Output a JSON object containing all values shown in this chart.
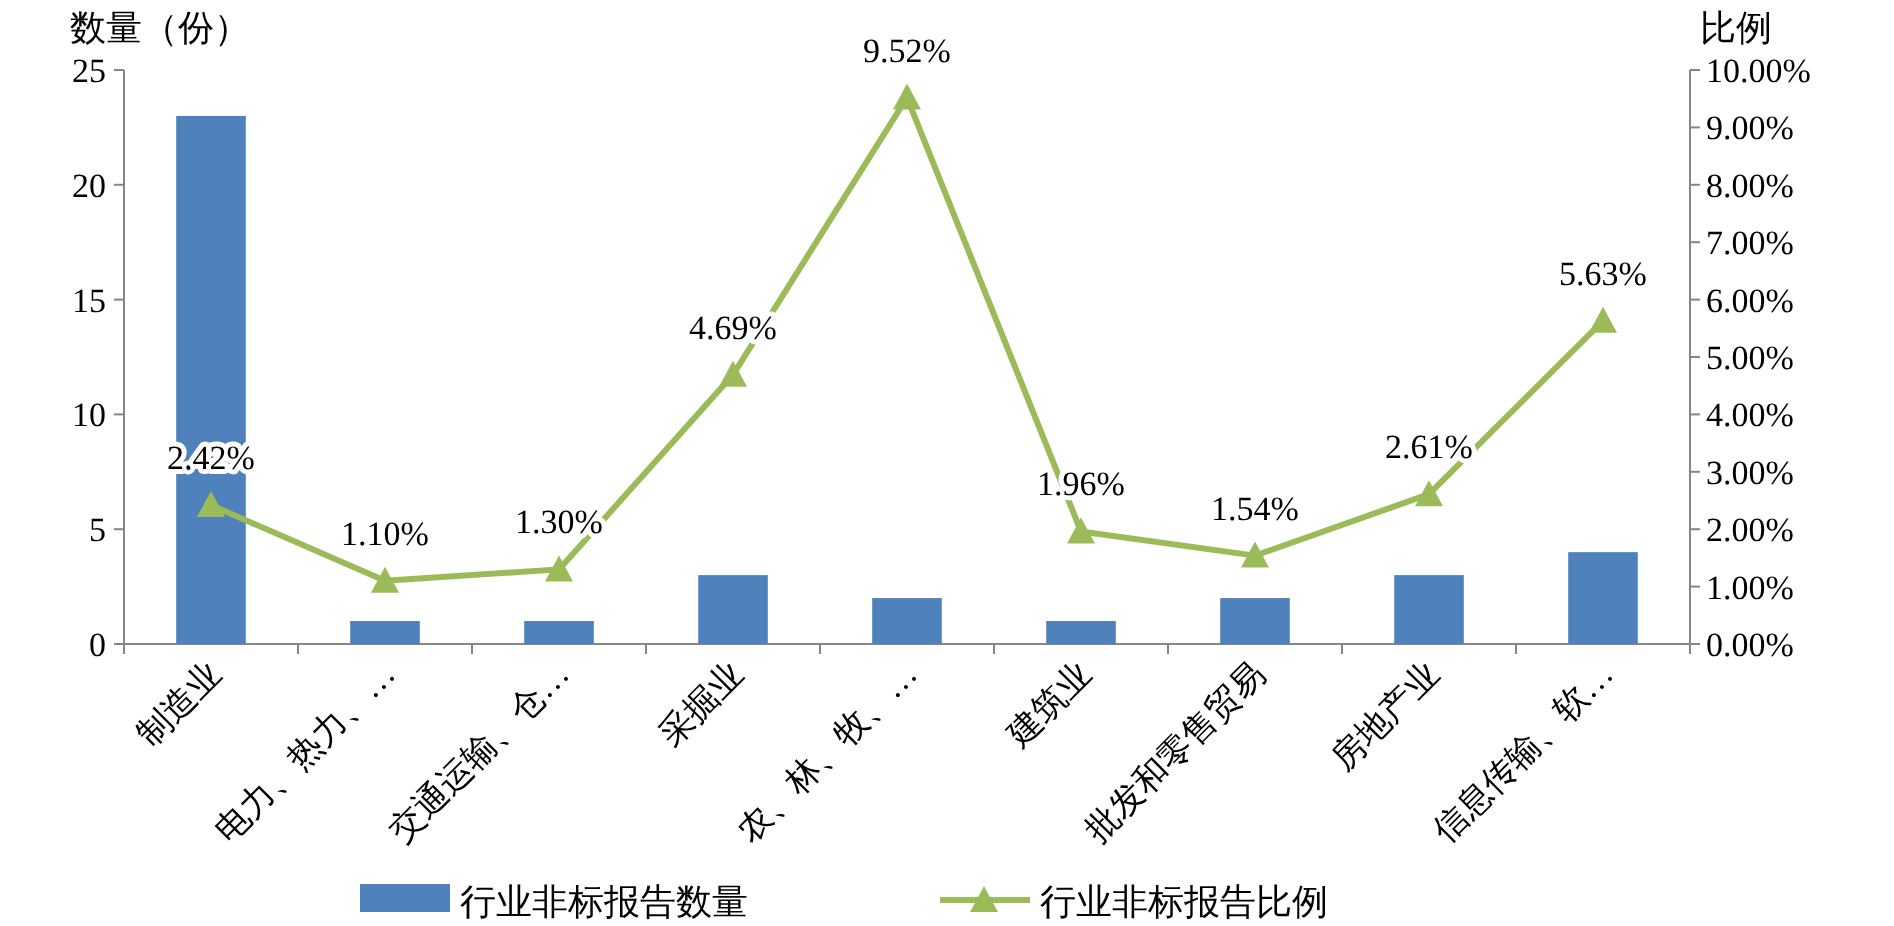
{
  "chart_data": {
    "type": "bar",
    "ylabel": "数量（份）",
    "y2label": "比例",
    "categories": [
      "制造业",
      "电力、热力、…",
      "交通运输、仓…",
      "采掘业",
      "农、林、牧、…",
      "建筑业",
      "批发和零售贸易",
      "房地产业",
      "信息传输、软…"
    ],
    "series": [
      {
        "name": "行业非标报告数量",
        "color": "#4f81bd",
        "values": [
          23,
          1,
          1,
          3,
          2,
          1,
          2,
          3,
          4
        ]
      },
      {
        "name": "行业非标报告比例",
        "type": "line",
        "axis": "y2",
        "color": "#9bbb59",
        "marker": "triangle",
        "values": [
          2.42,
          1.1,
          1.3,
          4.69,
          9.52,
          1.96,
          1.54,
          2.61,
          5.63
        ],
        "value_labels": [
          "2.42%",
          "1.10%",
          "1.30%",
          "4.69%",
          "9.52%",
          "1.96%",
          "1.54%",
          "2.61%",
          "5.63%"
        ]
      }
    ],
    "ylim": [
      0,
      25
    ],
    "yticks": [
      0,
      5,
      10,
      15,
      20,
      25
    ],
    "y2lim": [
      0,
      10
    ],
    "y2ticks": [
      {
        "value": 0,
        "label": "0.00%"
      },
      {
        "value": 1,
        "label": "1.00%"
      },
      {
        "value": 2,
        "label": "2.00%"
      },
      {
        "value": 3,
        "label": "3.00%"
      },
      {
        "value": 4,
        "label": "4.00%"
      },
      {
        "value": 5,
        "label": "5.00%"
      },
      {
        "value": 6,
        "label": "6.00%"
      },
      {
        "value": 7,
        "label": "7.00%"
      },
      {
        "value": 8,
        "label": "8.00%"
      },
      {
        "value": 9,
        "label": "9.00%"
      },
      {
        "value": 10,
        "label": "10.00%"
      }
    ],
    "grid": false,
    "legend": "bottom"
  }
}
